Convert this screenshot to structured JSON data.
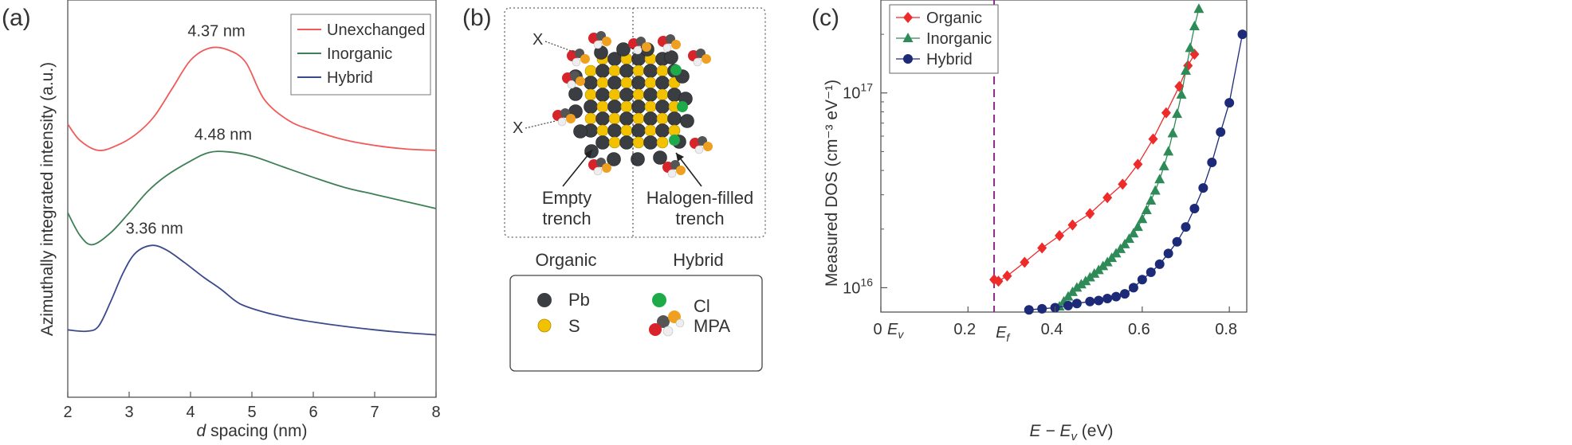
{
  "panels": {
    "a_label": "(a)",
    "b_label": "(b)",
    "c_label": "(c)"
  },
  "chart_data": [
    {
      "type": "line",
      "panel": "(a)",
      "xlabel_prefix": "d",
      "xlabel_rest": " spacing (nm)",
      "ylabel": "Azimuthally integrated intensity (a.u.)",
      "xlim": [
        2,
        8
      ],
      "xticks": [
        "2",
        "3",
        "4",
        "5",
        "6",
        "7",
        "8"
      ],
      "legend_position": "top-right",
      "legend_box": true,
      "series": [
        {
          "name": "Unexchanged",
          "color": "#f15a5a",
          "x": [
            2,
            2.2,
            2.5,
            2.8,
            3.1,
            3.4,
            3.7,
            4.0,
            4.3,
            4.6,
            4.9,
            5.2,
            5.6,
            6.0,
            6.5,
            7.0,
            7.5,
            8.0
          ],
          "y": [
            3.85,
            3.62,
            3.48,
            3.55,
            3.7,
            3.95,
            4.35,
            4.75,
            4.92,
            4.9,
            4.72,
            4.2,
            3.9,
            3.76,
            3.63,
            3.55,
            3.5,
            3.48
          ],
          "annotation": "4.37 nm",
          "annotation_x": 4.37
        },
        {
          "name": "Inorganic",
          "color": "#3f7f56",
          "x": [
            2,
            2.2,
            2.4,
            2.7,
            3.0,
            3.3,
            3.6,
            4.0,
            4.3,
            4.6,
            5.0,
            5.5,
            6.0,
            6.5,
            7.0,
            7.5,
            8.0
          ],
          "y": [
            2.6,
            2.28,
            2.15,
            2.32,
            2.6,
            2.9,
            3.12,
            3.33,
            3.45,
            3.46,
            3.4,
            3.25,
            3.1,
            2.96,
            2.86,
            2.76,
            2.66
          ],
          "annotation": "4.48 nm",
          "annotation_x": 4.48
        },
        {
          "name": "Hybrid",
          "color": "#3b4a8c",
          "x": [
            2,
            2.3,
            2.5,
            2.7,
            2.9,
            3.1,
            3.36,
            3.6,
            3.9,
            4.2,
            4.5,
            4.8,
            5.2,
            5.6,
            6.0,
            6.5,
            7.0,
            7.5,
            8.0
          ],
          "y": [
            0.95,
            0.93,
            1.0,
            1.35,
            1.75,
            2.03,
            2.14,
            2.08,
            1.9,
            1.7,
            1.52,
            1.32,
            1.2,
            1.12,
            1.06,
            1.0,
            0.95,
            0.91,
            0.88
          ],
          "annotation": "3.36 nm",
          "annotation_x": 3.36
        }
      ]
    },
    {
      "type": "scatter",
      "panel": "(c)",
      "xlabel": "E − E",
      "xlabel_sub": "v",
      "xlabel_unit": " (eV)",
      "ylabel": "Measured DOS (cm⁻³ eV⁻¹)",
      "y_scale": "log",
      "xlim": [
        0,
        0.84
      ],
      "ylim": [
        7500000000000000.0,
        3e+17
      ],
      "xticks": [
        {
          "value": 0,
          "label": "0"
        },
        {
          "value": 0.2,
          "label": "0.2"
        },
        {
          "value": 0.4,
          "label": "0.4"
        },
        {
          "value": 0.6,
          "label": "0.6"
        },
        {
          "value": 0.8,
          "label": "0.8"
        }
      ],
      "ev_marker": {
        "label": "E",
        "sub": "v"
      },
      "yticks": [
        {
          "value": 1e+16,
          "base": "10",
          "exp": "16"
        },
        {
          "value": 1e+17,
          "base": "10",
          "exp": "17"
        }
      ],
      "fermi_line": {
        "x": 0.26,
        "label": "E",
        "sub": "f",
        "color": "#8b2a8b"
      },
      "legend_position": "top-left",
      "series": [
        {
          "name": "Organic",
          "color": "#ee2b2b",
          "marker": "diamond",
          "x": [
            0.26,
            0.27,
            0.29,
            0.33,
            0.37,
            0.41,
            0.44,
            0.48,
            0.52,
            0.555,
            0.59,
            0.625,
            0.655,
            0.685,
            0.705,
            0.72
          ],
          "y": [
            1.1e+16,
            1.08e+16,
            1.15e+16,
            1.35e+16,
            1.6e+16,
            1.85e+16,
            2.1e+16,
            2.4e+16,
            2.9e+16,
            3.4e+16,
            4.3e+16,
            5.8e+16,
            7.9e+16,
            1.08e+17,
            1.38e+17,
            1.58e+17
          ]
        },
        {
          "name": "Inorganic",
          "color": "#2e8b57",
          "marker": "triangle",
          "x": [
            0.41,
            0.42,
            0.43,
            0.44,
            0.45,
            0.46,
            0.47,
            0.48,
            0.49,
            0.5,
            0.51,
            0.52,
            0.53,
            0.54,
            0.55,
            0.56,
            0.57,
            0.58,
            0.59,
            0.6,
            0.61,
            0.62,
            0.63,
            0.64,
            0.65,
            0.66,
            0.67,
            0.68,
            0.69,
            0.7,
            0.71,
            0.72,
            0.73
          ],
          "y": [
            8000000000000000.0,
            8500000000000000.0,
            9000000000000000.0,
            9500000000000000.0,
            1e+16,
            1.04e+16,
            1.08e+16,
            1.13e+16,
            1.18e+16,
            1.23e+16,
            1.29e+16,
            1.35e+16,
            1.42e+16,
            1.5e+16,
            1.58e+16,
            1.67e+16,
            1.78e+16,
            1.9e+16,
            2.05e+16,
            2.25e+16,
            2.5e+16,
            2.8e+16,
            3.15e+16,
            3.6e+16,
            4.2e+16,
            5e+16,
            6.2e+16,
            7.8e+16,
            9.8e+16,
            1.3e+17,
            1.7e+17,
            2.2e+17,
            2.7e+17
          ]
        },
        {
          "name": "Hybrid",
          "color": "#1c2a78",
          "marker": "circle",
          "x": [
            0.34,
            0.37,
            0.4,
            0.43,
            0.45,
            0.48,
            0.5,
            0.52,
            0.54,
            0.56,
            0.58,
            0.6,
            0.62,
            0.64,
            0.66,
            0.68,
            0.7,
            0.72,
            0.74,
            0.76,
            0.78,
            0.8,
            0.83
          ],
          "y": [
            7700000000000000.0,
            7800000000000000.0,
            7900000000000000.0,
            8100000000000000.0,
            8300000000000000.0,
            8500000000000000.0,
            8600000000000000.0,
            8800000000000000.0,
            9000000000000000.0,
            9300000000000000.0,
            1e+16,
            1.1e+16,
            1.2e+16,
            1.32e+16,
            1.5e+16,
            1.72e+16,
            2.05e+16,
            2.55e+16,
            3.25e+16,
            4.4e+16,
            6.3e+16,
            8.9e+16,
            2e+17
          ]
        }
      ]
    }
  ],
  "diagram_b": {
    "labels": {
      "x_top": "X",
      "x_left": "X",
      "empty_trench_line1": "Empty",
      "empty_trench_line2": "trench",
      "halogen_line1": "Halogen-filled",
      "halogen_line2": "trench",
      "organic": "Organic",
      "hybrid": "Hybrid"
    },
    "legend": {
      "pb": "Pb",
      "s": "S",
      "cl": "Cl",
      "mpa": "MPA"
    },
    "colors": {
      "pb": "#3a3d42",
      "s": "#f2c200",
      "cl": "#1faa4a",
      "o": "#d8232a",
      "h": "#eeeeee",
      "mpa_s": "#f0a020"
    }
  }
}
